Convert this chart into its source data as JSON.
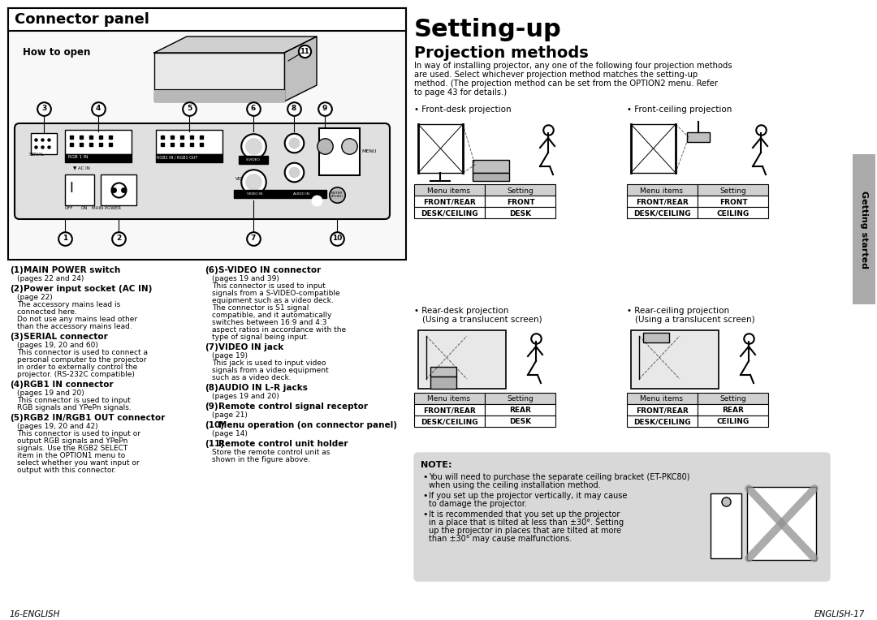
{
  "page_bg": "#ffffff",
  "left_panel_bg": "#ffffff",
  "left_panel_border": "#000000",
  "left_panel_title": "Connector panel",
  "left_panel_subtitle": "How to open",
  "right_title": "Setting-up",
  "right_subtitle": "Projection methods",
  "right_intro": "In way of installing projector, any one of the following four projection methods\nare used. Select whichever projection method matches the setting-up\nmethod. (The projection method can be set from the OPTION2 menu. Refer\nto page 43 for details.)",
  "connector_items": [
    {
      "num": "1",
      "bold": "MAIN POWER switch",
      "text": "(pages 22 and 24)"
    },
    {
      "num": "2",
      "bold": "Power input socket (AC IN)",
      "text": "(page 22)\nThe accessory mains lead is\nconnected here.\nDo not use any mains lead other\nthan the accessory mains lead."
    },
    {
      "num": "3",
      "bold": "SERIAL connector",
      "text": "(pages 19, 20 and 60)\nThis connector is used to connect a\npersonal computer to the projector\nin order to externally control the\nprojector. (RS-232C compatible)"
    },
    {
      "num": "4",
      "bold": "RGB1 IN connector",
      "text": "(pages 19 and 20)\nThis connector is used to input\nRGB signals and YPePn signals."
    },
    {
      "num": "5",
      "bold": "RGB2 IN/RGB1 OUT connector",
      "text": "(pages 19, 20 and 42)\nThis connector is used to input or\noutput RGB signals and YPePn\nsignals. Use the RGB2 SELECT\nitem in the OPTION1 menu to\nselect whether you want input or\noutput with this connector."
    }
  ],
  "connector_items_right": [
    {
      "num": "6",
      "bold": "S-VIDEO IN connector",
      "text": "(pages 19 and 39)\nThis connector is used to input\nsignals from a S-VIDEO-compatible\nequipment such as a video deck.\nThe connector is S1 signal\ncompatible, and it automatically\nswitches between 16:9 and 4:3\naspect ratios in accordance with the\ntype of signal being input."
    },
    {
      "num": "7",
      "bold": "VIDEO IN jack",
      "text": "(page 19)\nThis jack is used to input video\nsignals from a video equipment\nsuch as a video deck."
    },
    {
      "num": "8",
      "bold": "AUDIO IN L-R jacks",
      "text": "(pages 19 and 20)"
    },
    {
      "num": "9",
      "bold": "Remote control signal receptor",
      "text": "(page 21)"
    },
    {
      "num": "10",
      "bold": "Menu operation (on connector panel)",
      "text": "(page 14)"
    },
    {
      "num": "11",
      "bold": "Remote control unit holder",
      "text": "Store the remote control unit as\nshown in the figure above."
    }
  ],
  "projection_methods": [
    {
      "label": "Front-desk projection",
      "table": [
        [
          "Menu items",
          "Setting"
        ],
        [
          "FRONT/REAR",
          "FRONT"
        ],
        [
          "DESK/CEILING",
          "DESK"
        ]
      ]
    },
    {
      "label": "Front-ceiling projection",
      "table": [
        [
          "Menu items",
          "Setting"
        ],
        [
          "FRONT/REAR",
          "FRONT"
        ],
        [
          "DESK/CEILING",
          "CEILING"
        ]
      ]
    },
    {
      "label": "Rear-desk projection\n(Using a translucent screen)",
      "table": [
        [
          "Menu items",
          "Setting"
        ],
        [
          "FRONT/REAR",
          "REAR"
        ],
        [
          "DESK/CEILING",
          "DESK"
        ]
      ]
    },
    {
      "label": "Rear-ceiling projection\n(Using a translucent screen)",
      "table": [
        [
          "Menu items",
          "Setting"
        ],
        [
          "FRONT/REAR",
          "REAR"
        ],
        [
          "DESK/CEILING",
          "CEILING"
        ]
      ]
    }
  ],
  "note_bg": "#d8d8d8",
  "note_title": "NOTE:",
  "note_items": [
    "You will need to purchase the separate ceiling bracket (ET-PKC80)\nwhen using the ceiling installation method.",
    "If you set up the projector vertically, it may cause\nto damage the projector.",
    "It is recommended that you set up the projector\nin a place that is tilted at less than ±30°. Setting\nup the projector in places that are tilted at more\nthan ±30° may cause malfunctions."
  ],
  "footer_left": "16-ENGLISH",
  "footer_right": "ENGLISH-17",
  "side_tab": "Getting started",
  "side_tab_bg": "#aaaaaa"
}
